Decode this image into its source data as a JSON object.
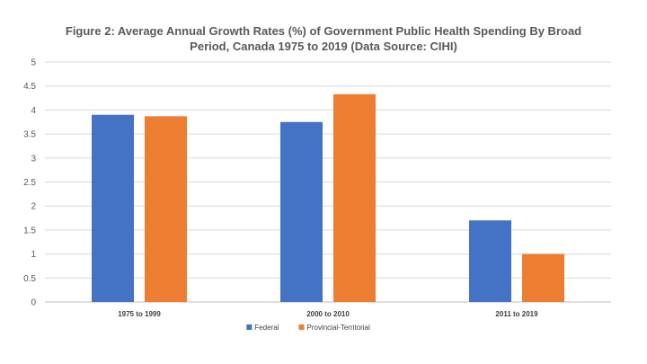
{
  "chart_data": {
    "type": "bar",
    "title": "Figure 2: Average Annual Growth Rates (%) of Government Public Health Spending By Broad Period, Canada 1975 to 2019 (Data Source: CIHI)",
    "xlabel": "",
    "ylabel": "",
    "categories": [
      "1975 to 1999",
      "2000 to 2010",
      "2011 to 2019"
    ],
    "series": [
      {
        "name": "Federal",
        "values": [
          3.9,
          3.75,
          1.7
        ],
        "color": "#4472C4"
      },
      {
        "name": "Provincial-Territorial",
        "values": [
          3.87,
          4.33,
          1.0
        ],
        "color": "#ED7D31"
      }
    ],
    "ylim": [
      0,
      5
    ],
    "yticks": [
      "0",
      "0.5",
      "1",
      "1.5",
      "2",
      "2.5",
      "3",
      "3.5",
      "4",
      "4.5",
      "5"
    ],
    "grid": true,
    "legend_position": "bottom"
  }
}
